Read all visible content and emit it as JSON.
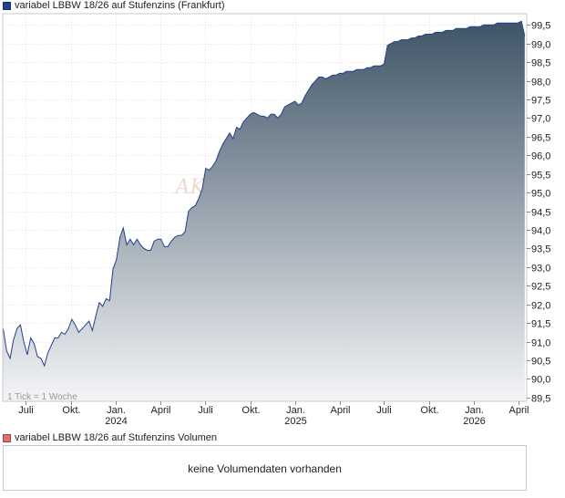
{
  "price_legend": {
    "label": "variabel LBBW 18/26 auf Stufenzins (Frankfurt)",
    "swatch_color": "#23408e"
  },
  "volume_legend": {
    "label": "variabel LBBW 18/26 auf Stufenzins Volumen",
    "swatch_color": "#e07070"
  },
  "volume_panel": {
    "message": "keine Volumendaten vorhanden"
  },
  "chart_data": {
    "type": "area",
    "title": "",
    "xlabel": "",
    "ylabel": "",
    "tick_note": "1 Tick = 1 Woche",
    "watermark": "AKTIEN",
    "ylim": [
      89.4,
      99.8
    ],
    "y_ticks": [
      89.5,
      90.0,
      90.5,
      91.0,
      91.5,
      92.0,
      92.5,
      93.0,
      93.5,
      94.0,
      94.5,
      95.0,
      95.5,
      96.0,
      96.5,
      97.0,
      97.5,
      98.0,
      98.5,
      99.0,
      99.5
    ],
    "y_tick_labels": [
      "89,5",
      "90,0",
      "90,5",
      "91,0",
      "91,5",
      "92,0",
      "92,5",
      "93,0",
      "93,5",
      "94,0",
      "94,5",
      "95,0",
      "95,5",
      "96,0",
      "96,5",
      "97,0",
      "97,5",
      "98,0",
      "98,5",
      "99,0",
      "99,5"
    ],
    "xlim": [
      "2023-05-15",
      "2026-04-18"
    ],
    "x_ticks": [
      {
        "date": "2023-07-01",
        "label": "Juli",
        "year": ""
      },
      {
        "date": "2023-10-01",
        "label": "Okt.",
        "year": ""
      },
      {
        "date": "2024-01-01",
        "label": "Jan.",
        "year": "2024"
      },
      {
        "date": "2024-04-01",
        "label": "April",
        "year": ""
      },
      {
        "date": "2024-07-01",
        "label": "Juli",
        "year": ""
      },
      {
        "date": "2024-10-01",
        "label": "Okt.",
        "year": ""
      },
      {
        "date": "2025-01-01",
        "label": "Jan.",
        "year": "2025"
      },
      {
        "date": "2025-04-01",
        "label": "April",
        "year": ""
      },
      {
        "date": "2025-07-01",
        "label": "Juli",
        "year": ""
      },
      {
        "date": "2025-10-01",
        "label": "Okt.",
        "year": ""
      },
      {
        "date": "2026-01-01",
        "label": "Jan.",
        "year": "2026"
      },
      {
        "date": "2026-04-01",
        "label": "April",
        "year": ""
      }
    ],
    "grid": true,
    "fill": {
      "top_color": "#3e5466",
      "bottom_color": "#f4f5f7"
    },
    "line_color": "#23408e",
    "series": [
      {
        "x": [
          "2023-05-16",
          "2023-05-23",
          "2023-05-30",
          "2023-06-06",
          "2023-06-13",
          "2023-06-20",
          "2023-06-27",
          "2023-07-04",
          "2023-07-11",
          "2023-07-18",
          "2023-07-25",
          "2023-08-01",
          "2023-08-08",
          "2023-08-15",
          "2023-08-22",
          "2023-08-29",
          "2023-09-05",
          "2023-09-12",
          "2023-09-19",
          "2023-09-26",
          "2023-10-03",
          "2023-10-10",
          "2023-10-17",
          "2023-10-24",
          "2023-10-31",
          "2023-11-07",
          "2023-11-14",
          "2023-11-21",
          "2023-11-28",
          "2023-12-05",
          "2023-12-12",
          "2023-12-19",
          "2023-12-26",
          "2024-01-02",
          "2024-01-09",
          "2024-01-16",
          "2024-01-23",
          "2024-01-30",
          "2024-02-06",
          "2024-02-13",
          "2024-02-20",
          "2024-02-27",
          "2024-03-05",
          "2024-03-12",
          "2024-03-19",
          "2024-03-26",
          "2024-04-02",
          "2024-04-09",
          "2024-04-16",
          "2024-04-23",
          "2024-04-30",
          "2024-05-07",
          "2024-05-14",
          "2024-05-21",
          "2024-05-28",
          "2024-06-04",
          "2024-06-11",
          "2024-06-18",
          "2024-06-25",
          "2024-07-02",
          "2024-07-09",
          "2024-07-16",
          "2024-07-23",
          "2024-07-30",
          "2024-08-06",
          "2024-08-13",
          "2024-08-20",
          "2024-08-27",
          "2024-09-03",
          "2024-09-10",
          "2024-09-17",
          "2024-09-24",
          "2024-10-01",
          "2024-10-08",
          "2024-10-15",
          "2024-10-22",
          "2024-10-29",
          "2024-11-05",
          "2024-11-12",
          "2024-11-19",
          "2024-11-26",
          "2024-12-03",
          "2024-12-10",
          "2024-12-17",
          "2024-12-24",
          "2024-12-31",
          "2025-01-07",
          "2025-01-14",
          "2025-01-21",
          "2025-01-28",
          "2025-02-04",
          "2025-02-11",
          "2025-02-18",
          "2025-02-25",
          "2025-03-04",
          "2025-03-11",
          "2025-03-18",
          "2025-03-25",
          "2025-04-01",
          "2025-04-08",
          "2025-04-15",
          "2025-04-22",
          "2025-04-29",
          "2025-05-06",
          "2025-05-13",
          "2025-05-20",
          "2025-05-27",
          "2025-06-03",
          "2025-06-10",
          "2025-06-17",
          "2025-06-24",
          "2025-07-01",
          "2025-07-08",
          "2025-07-15",
          "2025-07-22",
          "2025-07-29",
          "2025-08-05",
          "2025-08-12",
          "2025-08-19",
          "2025-08-26",
          "2025-09-02",
          "2025-09-09",
          "2025-09-16",
          "2025-09-23",
          "2025-09-30",
          "2025-10-07",
          "2025-10-14",
          "2025-10-21",
          "2025-10-28",
          "2025-11-04",
          "2025-11-11",
          "2025-11-18",
          "2025-11-25",
          "2025-12-02",
          "2025-12-09",
          "2025-12-16",
          "2025-12-23",
          "2025-12-30",
          "2026-01-06",
          "2026-01-13",
          "2026-01-20",
          "2026-01-27",
          "2026-02-03",
          "2026-02-10",
          "2026-02-17",
          "2026-02-24",
          "2026-03-03",
          "2026-03-10",
          "2026-03-17",
          "2026-03-24",
          "2026-03-31",
          "2026-04-07",
          "2026-04-14"
        ],
        "y": [
          91.35,
          90.75,
          90.55,
          91.05,
          91.35,
          91.45,
          91.0,
          90.65,
          91.1,
          90.95,
          90.6,
          90.55,
          90.35,
          90.7,
          90.9,
          91.1,
          91.1,
          91.25,
          91.2,
          91.35,
          91.6,
          91.45,
          91.25,
          91.35,
          91.45,
          91.55,
          91.3,
          91.7,
          92.05,
          91.95,
          92.15,
          92.1,
          92.95,
          93.2,
          93.8,
          94.05,
          93.6,
          93.75,
          93.6,
          93.75,
          93.6,
          93.5,
          93.45,
          93.45,
          93.7,
          93.75,
          93.75,
          93.55,
          93.55,
          93.7,
          93.8,
          93.85,
          93.85,
          93.95,
          94.5,
          94.6,
          94.65,
          94.85,
          95.1,
          95.65,
          95.6,
          95.7,
          95.85,
          96.1,
          96.3,
          96.45,
          96.6,
          96.45,
          96.75,
          96.7,
          96.9,
          97.0,
          97.1,
          97.15,
          97.1,
          97.05,
          97.05,
          97.0,
          97.1,
          97.1,
          97.0,
          97.1,
          97.3,
          97.35,
          97.4,
          97.45,
          97.35,
          97.4,
          97.6,
          97.75,
          97.9,
          98.0,
          98.1,
          98.1,
          98.05,
          98.1,
          98.15,
          98.15,
          98.2,
          98.2,
          98.25,
          98.25,
          98.25,
          98.3,
          98.3,
          98.3,
          98.35,
          98.35,
          98.4,
          98.4,
          98.4,
          98.45,
          98.95,
          99.0,
          99.05,
          99.05,
          99.1,
          99.1,
          99.1,
          99.15,
          99.15,
          99.2,
          99.2,
          99.25,
          99.25,
          99.25,
          99.3,
          99.3,
          99.3,
          99.35,
          99.35,
          99.35,
          99.4,
          99.4,
          99.4,
          99.4,
          99.45,
          99.45,
          99.45,
          99.45,
          99.5,
          99.5,
          99.5,
          99.5,
          99.55,
          99.55,
          99.55,
          99.55,
          99.55,
          99.55,
          99.55,
          99.6,
          99.2
        ]
      }
    ]
  }
}
